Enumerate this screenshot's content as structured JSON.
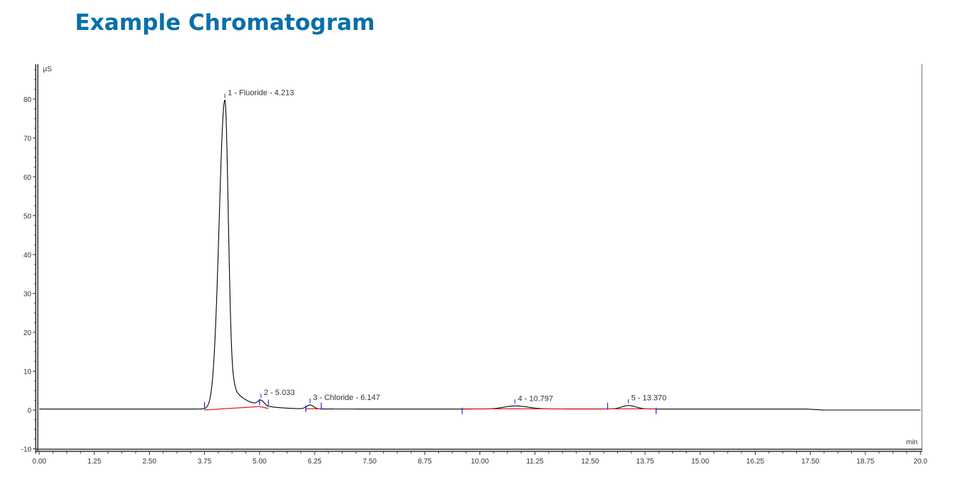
{
  "title": "Example Chromatogram",
  "chart_data": {
    "type": "line",
    "title": "Example Chromatogram",
    "xlabel": "min",
    "ylabel": "µS",
    "xlim": [
      0,
      20
    ],
    "ylim": [
      -10,
      89
    ],
    "xticks": [
      "0.00",
      "1.25",
      "2.50",
      "3.75",
      "5.00",
      "6.25",
      "7.50",
      "8.75",
      "10.00",
      "11.25",
      "12.50",
      "13.75",
      "15.00",
      "16.25",
      "17.50",
      "18.75",
      "20.0"
    ],
    "yticks": [
      "-10",
      "0",
      "10",
      "20",
      "30",
      "40",
      "50",
      "60",
      "70",
      "80"
    ],
    "grid": false,
    "colors": {
      "trace": "#000000",
      "baseline": "#e02020",
      "markers": "#2020e0",
      "title": "#0a6fa8"
    },
    "peaks": [
      {
        "label": "1 - Fluoride - 4.213",
        "rt": 4.213,
        "height": 79.5
      },
      {
        "label": "2 - 5.033",
        "rt": 5.033,
        "height": 1.3
      },
      {
        "label": "3 - Chloride - 6.147",
        "rt": 6.147,
        "height": 1.0
      },
      {
        "label": "4 - 10.797",
        "rt": 10.797,
        "height": 0.8
      },
      {
        "label": "5 - 13.370",
        "rt": 13.37,
        "height": 0.9
      }
    ],
    "integration_baselines": [
      [
        3.75,
        0,
        5.0,
        0.9
      ],
      [
        5.0,
        0.9,
        5.2,
        0.4
      ],
      [
        6.05,
        0.3,
        6.4,
        0.3
      ],
      [
        9.6,
        0.3,
        12.9,
        0.3
      ],
      [
        12.9,
        0.3,
        14.0,
        0.3
      ]
    ],
    "integration_markers": [
      3.75,
      5.0,
      5.2,
      6.05,
      6.4,
      9.6,
      12.9,
      14.0
    ]
  }
}
